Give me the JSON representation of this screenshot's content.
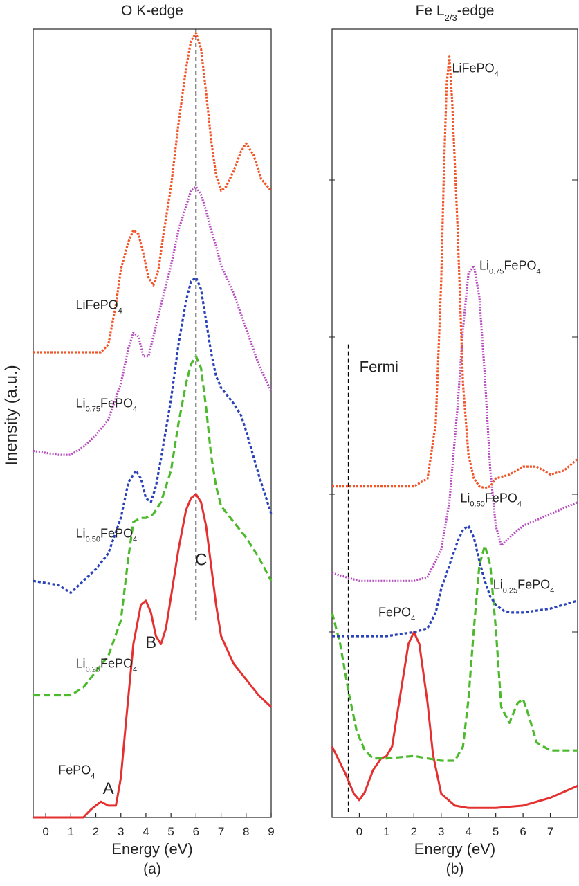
{
  "ylabel": "Inensity (a.u.)",
  "chart_data": [
    {
      "type": "line",
      "title": "O K-edge",
      "xlabel": "Energy (eV)",
      "caption": "(a)",
      "xlim": [
        -0.5,
        9
      ],
      "ylim": [
        0,
        10
      ],
      "xticks": [
        "0",
        "1",
        "2",
        "3",
        "4",
        "5",
        "6",
        "7",
        "8",
        "9"
      ],
      "reference_line": {
        "x": 6.0,
        "style": "dashed",
        "color": "#000000"
      },
      "annotations": [
        {
          "text": "A",
          "x": 2.5,
          "y": 0.3
        },
        {
          "text": "B",
          "x": 4.2,
          "y": 2.15
        },
        {
          "text": "C",
          "x": 6.2,
          "y": 3.2
        }
      ],
      "series": [
        {
          "name": "FePO",
          "sub": "4",
          "color": "#e53030",
          "dash": "solid",
          "x": [
            -0.5,
            1.5,
            1.8,
            2.0,
            2.2,
            2.5,
            2.8,
            3.0,
            3.2,
            3.5,
            3.8,
            4.0,
            4.2,
            4.4,
            4.6,
            4.8,
            5.0,
            5.3,
            5.6,
            5.8,
            6.0,
            6.2,
            6.4,
            6.6,
            6.8,
            7.0,
            7.5,
            8.0,
            8.5,
            9.0
          ],
          "y": [
            0.0,
            0.0,
            0.1,
            0.15,
            0.2,
            0.15,
            0.15,
            0.5,
            1.2,
            2.2,
            2.7,
            2.75,
            2.6,
            2.3,
            2.2,
            2.4,
            2.8,
            3.4,
            3.9,
            4.05,
            4.1,
            4.0,
            3.7,
            3.2,
            2.7,
            2.3,
            1.95,
            1.75,
            1.55,
            1.4
          ]
        },
        {
          "name": "Li",
          "sub": "0.25",
          "name2": "FePO",
          "sub2": "4",
          "color": "#4cba2c",
          "dash": "10,5",
          "x": [
            -0.5,
            1.0,
            1.5,
            2.0,
            2.5,
            3.0,
            3.3,
            3.5,
            3.8,
            4.0,
            4.3,
            4.6,
            5.0,
            5.3,
            5.6,
            5.8,
            6.0,
            6.2,
            6.4,
            6.6,
            6.8,
            7.0,
            7.5,
            8.0,
            8.5,
            9.0
          ],
          "y": [
            1.55,
            1.55,
            1.65,
            1.85,
            2.05,
            2.5,
            3.3,
            3.75,
            3.8,
            3.8,
            3.85,
            4.0,
            4.4,
            5.0,
            5.5,
            5.75,
            5.85,
            5.7,
            5.2,
            4.6,
            4.2,
            3.95,
            3.75,
            3.55,
            3.3,
            3.0
          ]
        },
        {
          "name": "Li",
          "sub": "0.50",
          "name2": "FePO",
          "sub2": "4",
          "color": "#2b43b8",
          "dash": "4,3",
          "x": [
            -0.5,
            0.5,
            1.0,
            1.5,
            2.0,
            2.5,
            3.0,
            3.3,
            3.6,
            3.8,
            4.0,
            4.2,
            4.4,
            4.6,
            5.0,
            5.3,
            5.6,
            5.8,
            6.0,
            6.2,
            6.4,
            6.6,
            6.8,
            7.0,
            7.5,
            7.8,
            8.0,
            8.5,
            9.0
          ],
          "y": [
            3.0,
            2.95,
            2.85,
            3.0,
            3.15,
            3.35,
            3.8,
            4.25,
            4.4,
            4.3,
            4.05,
            4.0,
            4.2,
            4.55,
            5.3,
            6.0,
            6.55,
            6.8,
            6.85,
            6.7,
            6.3,
            5.9,
            5.6,
            5.45,
            5.25,
            5.1,
            4.9,
            4.35,
            3.85
          ]
        },
        {
          "name": "Li",
          "sub": "0.75",
          "name2": "FePO",
          "sub2": "4",
          "color": "#b84dc0",
          "dash": "2,2",
          "x": [
            -0.5,
            0.5,
            1.0,
            1.5,
            2.0,
            2.5,
            3.0,
            3.3,
            3.5,
            3.7,
            3.9,
            4.1,
            4.3,
            4.6,
            5.0,
            5.3,
            5.6,
            5.8,
            6.0,
            6.2,
            6.4,
            6.6,
            6.8,
            7.0,
            7.5,
            8.0,
            8.5,
            9.0
          ],
          "y": [
            4.65,
            4.6,
            4.6,
            4.7,
            4.85,
            5.05,
            5.5,
            5.95,
            6.15,
            6.1,
            5.85,
            5.85,
            6.1,
            6.5,
            7.0,
            7.45,
            7.75,
            7.95,
            8.0,
            7.9,
            7.7,
            7.45,
            7.25,
            7.0,
            6.65,
            6.2,
            5.75,
            5.4
          ]
        },
        {
          "name": "LiFePO",
          "sub": "4",
          "color": "#f0562a",
          "dash": "3,2",
          "x": [
            -0.5,
            1.0,
            2.2,
            2.5,
            2.8,
            3.0,
            3.3,
            3.5,
            3.7,
            3.9,
            4.1,
            4.3,
            4.5,
            4.7,
            5.0,
            5.3,
            5.6,
            5.8,
            6.0,
            6.2,
            6.4,
            6.6,
            6.8,
            7.0,
            7.2,
            7.5,
            7.8,
            8.0,
            8.3,
            8.6,
            9.0
          ],
          "y": [
            5.9,
            5.9,
            5.9,
            6.0,
            6.5,
            6.95,
            7.3,
            7.45,
            7.4,
            7.15,
            6.85,
            6.75,
            6.95,
            7.4,
            8.0,
            8.8,
            9.5,
            9.85,
            9.95,
            9.75,
            9.2,
            8.6,
            8.15,
            7.95,
            8.0,
            8.2,
            8.45,
            8.55,
            8.4,
            8.1,
            7.95
          ]
        }
      ],
      "series_labels": [
        {
          "series": 0,
          "x": 0.5,
          "y": 0.55
        },
        {
          "series": 1,
          "x": 1.2,
          "y": 1.9
        },
        {
          "series": 2,
          "x": 1.2,
          "y": 3.55
        },
        {
          "series": 3,
          "x": 1.2,
          "y": 5.2
        },
        {
          "series": 4,
          "x": 1.2,
          "y": 6.45
        }
      ]
    },
    {
      "type": "line",
      "title": "Fe L",
      "title_sub": "2/3",
      "title_suffix": "-edge",
      "xlabel": "Energy (eV)",
      "caption": "(b)",
      "xlim": [
        -1,
        8
      ],
      "ylim": [
        0,
        10
      ],
      "xticks": [
        "0",
        "1",
        "2",
        "3",
        "4",
        "5",
        "6",
        "7"
      ],
      "reference_line": {
        "x": -0.4,
        "y_top": 6.0,
        "style": "dashed",
        "color": "#000000",
        "label": "Fermi"
      },
      "series": [
        {
          "name": "FePO",
          "sub": "4",
          "color": "#e53030",
          "dash": "solid",
          "x": [
            -1.0,
            -0.5,
            -0.2,
            0.0,
            0.2,
            0.5,
            0.8,
            1.0,
            1.2,
            1.5,
            1.8,
            2.0,
            2.2,
            2.5,
            2.7,
            3.0,
            3.5,
            4.0,
            5.0,
            6.0,
            7.0,
            8.0
          ],
          "y": [
            0.9,
            0.55,
            0.3,
            0.22,
            0.32,
            0.6,
            0.75,
            0.78,
            0.9,
            1.55,
            2.2,
            2.35,
            2.2,
            1.45,
            0.8,
            0.3,
            0.15,
            0.12,
            0.12,
            0.15,
            0.25,
            0.4
          ]
        },
        {
          "name": "Li",
          "sub": "0.25",
          "name2": "FePO",
          "sub2": "4",
          "color": "#4cba2c",
          "dash": "10,5",
          "x": [
            -1.0,
            -0.7,
            -0.4,
            -0.1,
            0.2,
            0.5,
            1.0,
            2.0,
            3.0,
            3.5,
            3.8,
            4.0,
            4.2,
            4.4,
            4.6,
            4.8,
            5.0,
            5.2,
            5.5,
            5.8,
            6.0,
            6.2,
            6.5,
            7.0,
            8.0
          ],
          "y": [
            2.6,
            2.2,
            1.6,
            1.1,
            0.85,
            0.75,
            0.75,
            0.78,
            0.72,
            0.72,
            0.9,
            1.5,
            2.4,
            3.2,
            3.45,
            3.2,
            2.4,
            1.4,
            1.2,
            1.45,
            1.5,
            1.3,
            0.95,
            0.85,
            0.85
          ]
        },
        {
          "name": "Li",
          "sub": "0.50",
          "name2": "FePO",
          "sub2": "4",
          "color": "#2b43b8",
          "dash": "4,3",
          "x": [
            -1.0,
            0.0,
            1.0,
            2.0,
            2.5,
            2.8,
            3.0,
            3.3,
            3.6,
            3.8,
            4.0,
            4.2,
            4.4,
            4.6,
            4.8,
            5.0,
            5.3,
            5.6,
            6.0,
            7.0,
            8.0
          ],
          "y": [
            2.3,
            2.3,
            2.3,
            2.35,
            2.4,
            2.6,
            2.9,
            3.2,
            3.5,
            3.65,
            3.7,
            3.55,
            3.25,
            3.0,
            2.8,
            2.7,
            2.62,
            2.6,
            2.6,
            2.65,
            2.75
          ]
        },
        {
          "name": "Li",
          "sub": "0.75",
          "name2": "FePO",
          "sub2": "4",
          "color": "#b84dc0",
          "dash": "2,2",
          "x": [
            -1.0,
            0.0,
            1.0,
            2.0,
            2.5,
            3.0,
            3.3,
            3.6,
            3.8,
            4.0,
            4.2,
            4.4,
            4.6,
            4.8,
            5.0,
            5.2,
            5.5,
            6.0,
            7.0,
            8.0
          ],
          "y": [
            3.1,
            3.0,
            3.0,
            3.0,
            3.05,
            3.4,
            4.0,
            5.2,
            6.2,
            6.9,
            7.0,
            6.6,
            5.6,
            4.4,
            3.7,
            3.45,
            3.55,
            3.7,
            3.85,
            4.0
          ]
        },
        {
          "name": "LiFePO",
          "sub": "4",
          "color": "#f0562a",
          "dash": "3,2",
          "x": [
            -1.0,
            0.0,
            1.0,
            2.0,
            2.5,
            2.8,
            3.0,
            3.1,
            3.2,
            3.3,
            3.4,
            3.6,
            3.8,
            4.0,
            4.2,
            4.4,
            4.6,
            4.8,
            5.0,
            5.5,
            6.0,
            6.5,
            7.0,
            7.5,
            8.0
          ],
          "y": [
            4.2,
            4.2,
            4.2,
            4.2,
            4.3,
            5.0,
            6.8,
            8.2,
            9.3,
            9.65,
            9.1,
            7.5,
            5.5,
            4.6,
            4.3,
            4.2,
            4.18,
            4.2,
            4.3,
            4.35,
            4.45,
            4.45,
            4.35,
            4.4,
            4.55
          ]
        }
      ],
      "series_labels": [
        {
          "series": 0,
          "x": 0.7,
          "y": 2.55
        },
        {
          "series": 1,
          "x": 4.9,
          "y": 2.9
        },
        {
          "series": 2,
          "x": 3.7,
          "y": 4.0
        },
        {
          "series": 3,
          "x": 4.4,
          "y": 6.95
        },
        {
          "series": 4,
          "x": 3.4,
          "y": 9.45
        }
      ]
    }
  ]
}
